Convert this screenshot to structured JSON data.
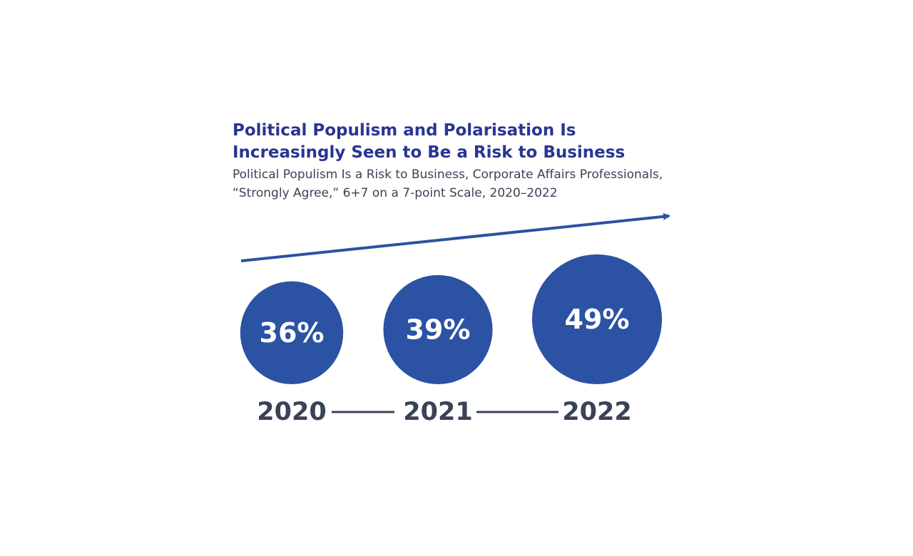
{
  "chart_data": {
    "type": "bubble",
    "title": "Political Populism and Polarisation Is Increasingly Seen to Be a Risk to Business",
    "subtitle": "Political Populism Is a Risk to Business, Corporate Affairs Professionals, “Strongly Agree,” 6+7 on a 7-point Scale, 2020–2022",
    "categories": [
      "2020",
      "2021",
      "2022"
    ],
    "values": [
      36,
      39,
      49
    ],
    "value_labels": [
      "36%",
      "39%",
      "49%"
    ],
    "color": "#2b52a3"
  }
}
